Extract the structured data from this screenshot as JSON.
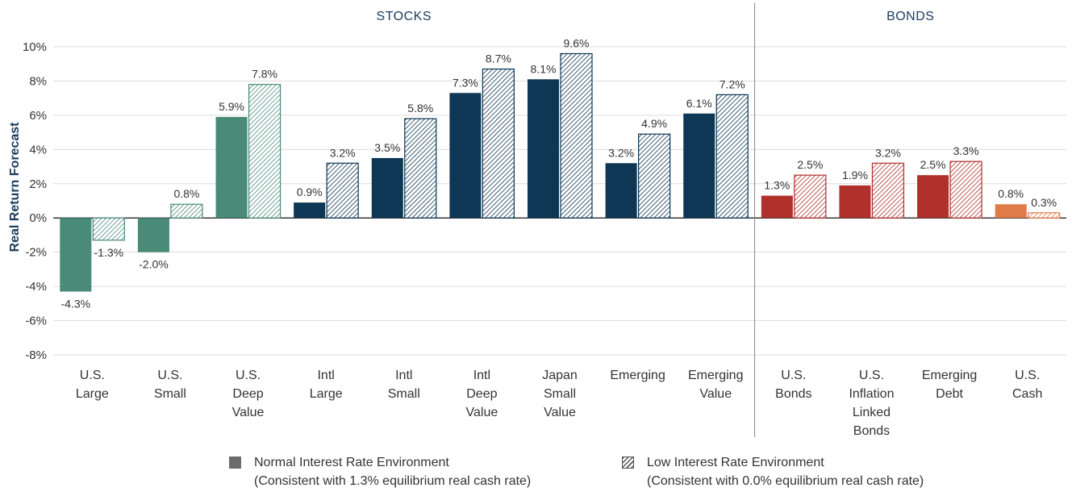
{
  "chart_data": {
    "type": "bar",
    "ylabel": "Real Return Forecast",
    "ylim": [
      -8,
      10
    ],
    "yticks": [
      "10%",
      "8%",
      "6%",
      "4%",
      "2%",
      "0%",
      "-2%",
      "-4%",
      "-6%",
      "-8%"
    ],
    "ytick_values": [
      10,
      8,
      6,
      4,
      2,
      0,
      -2,
      -4,
      -6,
      -8
    ],
    "grid": true,
    "sections": [
      {
        "label": "STOCKS",
        "categories": 9
      },
      {
        "label": "BONDS",
        "categories": 4
      }
    ],
    "categories": [
      {
        "lines": [
          "U.S.",
          "Large"
        ],
        "color": "#4a8a78"
      },
      {
        "lines": [
          "U.S.",
          "Small"
        ],
        "color": "#4a8a78"
      },
      {
        "lines": [
          "U.S.",
          "Deep",
          "Value"
        ],
        "color": "#4a8a78"
      },
      {
        "lines": [
          "Intl",
          "Large"
        ],
        "color": "#0d3754"
      },
      {
        "lines": [
          "Intl",
          "Small"
        ],
        "color": "#0d3754"
      },
      {
        "lines": [
          "Intl",
          "Deep",
          "Value"
        ],
        "color": "#0d3754"
      },
      {
        "lines": [
          "Japan",
          "Small",
          "Value"
        ],
        "color": "#0d3754"
      },
      {
        "lines": [
          "Emerging"
        ],
        "color": "#0d3754"
      },
      {
        "lines": [
          "Emerging",
          "Value"
        ],
        "color": "#0d3754"
      },
      {
        "lines": [
          "U.S.",
          "Bonds"
        ],
        "color": "#b0302b"
      },
      {
        "lines": [
          "U.S.",
          "Inflation",
          "Linked",
          "Bonds"
        ],
        "color": "#b0302b"
      },
      {
        "lines": [
          "Emerging",
          "Debt"
        ],
        "color": "#b0302b"
      },
      {
        "lines": [
          "U.S.",
          "Cash"
        ],
        "color": "#e07a48"
      }
    ],
    "series": [
      {
        "name": "Normal Interest Rate Environment",
        "note": "(Consistent with 1.3% equilibrium real cash rate)",
        "pattern": "solid",
        "values": [
          -4.3,
          -2.0,
          5.9,
          0.9,
          3.5,
          7.3,
          8.1,
          3.2,
          6.1,
          1.3,
          1.9,
          2.5,
          0.8
        ],
        "labels": [
          "-4.3%",
          "-2.0%",
          "5.9%",
          "0.9%",
          "3.5%",
          "7.3%",
          "8.1%",
          "3.2%",
          "6.1%",
          "1.3%",
          "1.9%",
          "2.5%",
          "0.8%"
        ]
      },
      {
        "name": "Low Interest Rate Environment",
        "note": "(Consistent with 0.0% equilibrium real cash rate)",
        "pattern": "hatched",
        "values": [
          -1.3,
          0.8,
          7.8,
          3.2,
          5.8,
          8.7,
          9.6,
          4.9,
          7.2,
          2.5,
          3.2,
          3.3,
          0.3
        ],
        "labels": [
          "-1.3%",
          "0.8%",
          "7.8%",
          "3.2%",
          "5.8%",
          "8.7%",
          "9.6%",
          "4.9%",
          "7.2%",
          "2.5%",
          "3.2%",
          "3.3%",
          "0.3%"
        ]
      }
    ],
    "legend_position": "bottom"
  },
  "legend": {
    "normal_title": "Normal Interest Rate Environment",
    "normal_note": "(Consistent with 1.3% equilibrium real cash rate)",
    "low_title": "Low Interest Rate Environment",
    "low_note": "(Consistent with 0.0% equilibrium real cash rate)"
  }
}
